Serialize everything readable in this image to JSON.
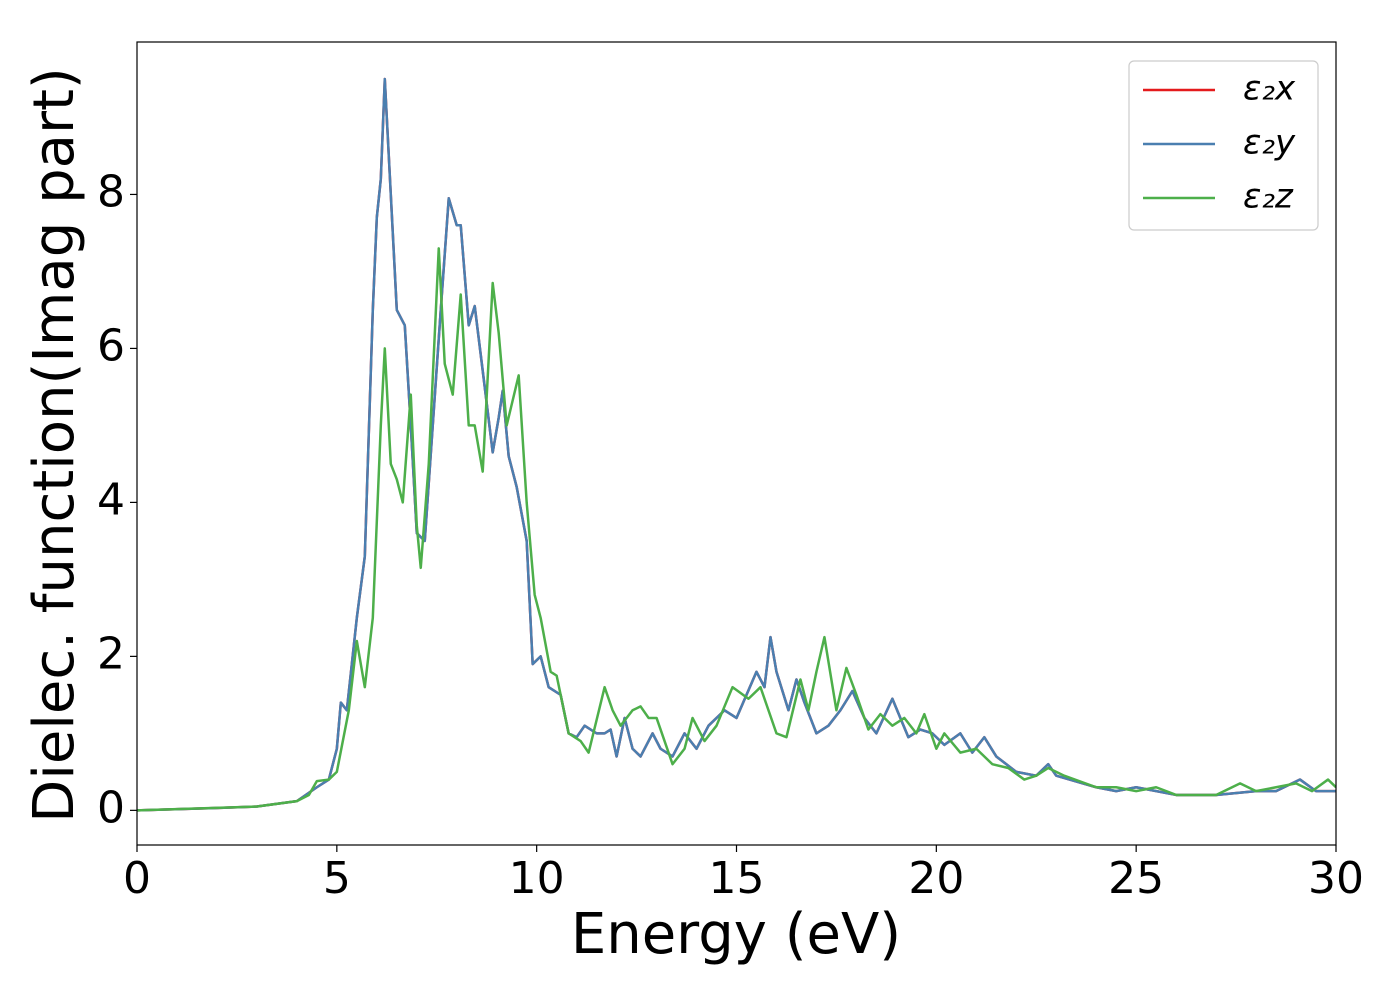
{
  "chart_data": {
    "type": "line",
    "xlabel": "Energy (eV)",
    "ylabel": "Dielec. function(Imag part)",
    "xlim": [
      0,
      30
    ],
    "ylim": [
      -0.45,
      9.98
    ],
    "xticks": [
      0,
      5,
      10,
      15,
      20,
      25,
      30
    ],
    "yticks": [
      0,
      2,
      4,
      6,
      8
    ],
    "legend": "upper right",
    "grid": false,
    "series": [
      {
        "name": "ε₂x",
        "color": "#e41a1c",
        "x": [
          0,
          2,
          3,
          4,
          4.5,
          4.8,
          5.0,
          5.1,
          5.25,
          5.5,
          5.7,
          5.9,
          6.0,
          6.1,
          6.2,
          6.3,
          6.5,
          6.7,
          6.85,
          7.0,
          7.2,
          7.4,
          7.6,
          7.8,
          8.0,
          8.1,
          8.3,
          8.45,
          8.7,
          8.9,
          9.05,
          9.15,
          9.3,
          9.5,
          9.75,
          9.9,
          10.1,
          10.3,
          10.6,
          10.8,
          11.0,
          11.2,
          11.5,
          11.7,
          11.85,
          12.0,
          12.2,
          12.4,
          12.6,
          12.9,
          13.1,
          13.4,
          13.7,
          14.0,
          14.3,
          14.7,
          15.0,
          15.5,
          15.7,
          15.85,
          16.0,
          16.3,
          16.5,
          16.7,
          17.0,
          17.3,
          17.6,
          17.9,
          18.2,
          18.5,
          18.9,
          19.1,
          19.3,
          19.6,
          19.9,
          20.2,
          20.6,
          20.9,
          21.2,
          21.5,
          22.0,
          22.5,
          22.8,
          23.0,
          24.0,
          24.5,
          25.0,
          26,
          27,
          28,
          28.5,
          29.1,
          29.5,
          30
        ],
        "values": [
          0,
          0.03,
          0.05,
          0.12,
          0.3,
          0.4,
          0.8,
          1.4,
          1.3,
          2.5,
          3.3,
          6.5,
          7.7,
          8.2,
          9.5,
          8.5,
          6.5,
          6.3,
          5.0,
          3.6,
          3.5,
          5.0,
          6.5,
          7.95,
          7.6,
          7.6,
          6.3,
          6.55,
          5.5,
          4.65,
          5.1,
          5.45,
          4.6,
          4.2,
          3.5,
          1.9,
          2.0,
          1.6,
          1.5,
          1.0,
          0.95,
          1.1,
          1.0,
          1.0,
          1.05,
          0.7,
          1.2,
          0.8,
          0.7,
          1.0,
          0.8,
          0.7,
          1.0,
          0.8,
          1.1,
          1.3,
          1.2,
          1.8,
          1.6,
          2.25,
          1.8,
          1.3,
          1.7,
          1.4,
          1.0,
          1.1,
          1.3,
          1.55,
          1.2,
          1.0,
          1.45,
          1.2,
          0.95,
          1.05,
          1.0,
          0.85,
          1.0,
          0.75,
          0.95,
          0.7,
          0.5,
          0.45,
          0.6,
          0.45,
          0.3,
          0.25,
          0.3,
          0.2,
          0.2,
          0.25,
          0.25,
          0.4,
          0.25,
          0.25
        ]
      },
      {
        "name": "ε₂y",
        "color": "#4a7fb0",
        "x": [
          0,
          2,
          3,
          4,
          4.5,
          4.8,
          5.0,
          5.1,
          5.25,
          5.5,
          5.7,
          5.9,
          6.0,
          6.1,
          6.2,
          6.3,
          6.5,
          6.7,
          6.85,
          7.0,
          7.2,
          7.4,
          7.6,
          7.8,
          8.0,
          8.1,
          8.3,
          8.45,
          8.7,
          8.9,
          9.05,
          9.15,
          9.3,
          9.5,
          9.75,
          9.9,
          10.1,
          10.3,
          10.6,
          10.8,
          11.0,
          11.2,
          11.5,
          11.7,
          11.85,
          12.0,
          12.2,
          12.4,
          12.6,
          12.9,
          13.1,
          13.4,
          13.7,
          14.0,
          14.3,
          14.7,
          15.0,
          15.5,
          15.7,
          15.85,
          16.0,
          16.3,
          16.5,
          16.7,
          17.0,
          17.3,
          17.6,
          17.9,
          18.2,
          18.5,
          18.9,
          19.1,
          19.3,
          19.6,
          19.9,
          20.2,
          20.6,
          20.9,
          21.2,
          21.5,
          22.0,
          22.5,
          22.8,
          23.0,
          24.0,
          24.5,
          25.0,
          26,
          27,
          28,
          28.5,
          29.1,
          29.5,
          30
        ],
        "values": [
          0,
          0.03,
          0.05,
          0.12,
          0.3,
          0.4,
          0.8,
          1.4,
          1.3,
          2.5,
          3.3,
          6.5,
          7.7,
          8.2,
          9.5,
          8.5,
          6.5,
          6.3,
          5.0,
          3.6,
          3.5,
          5.0,
          6.5,
          7.95,
          7.6,
          7.6,
          6.3,
          6.55,
          5.5,
          4.65,
          5.1,
          5.45,
          4.6,
          4.2,
          3.5,
          1.9,
          2.0,
          1.6,
          1.5,
          1.0,
          0.95,
          1.1,
          1.0,
          1.0,
          1.05,
          0.7,
          1.2,
          0.8,
          0.7,
          1.0,
          0.8,
          0.7,
          1.0,
          0.8,
          1.1,
          1.3,
          1.2,
          1.8,
          1.6,
          2.25,
          1.8,
          1.3,
          1.7,
          1.4,
          1.0,
          1.1,
          1.3,
          1.55,
          1.2,
          1.0,
          1.45,
          1.2,
          0.95,
          1.05,
          1.0,
          0.85,
          1.0,
          0.75,
          0.95,
          0.7,
          0.5,
          0.45,
          0.6,
          0.45,
          0.3,
          0.25,
          0.3,
          0.2,
          0.2,
          0.25,
          0.25,
          0.4,
          0.25,
          0.25
        ]
      },
      {
        "name": "ε₂z",
        "color": "#4daf4a",
        "x": [
          0,
          3,
          4,
          4.3,
          4.5,
          4.8,
          5.0,
          5.3,
          5.5,
          5.7,
          5.9,
          6.1,
          6.2,
          6.35,
          6.5,
          6.65,
          6.85,
          7.0,
          7.1,
          7.3,
          7.55,
          7.7,
          7.9,
          8.1,
          8.3,
          8.45,
          8.65,
          8.9,
          9.05,
          9.25,
          9.55,
          9.75,
          9.95,
          10.1,
          10.35,
          10.5,
          10.8,
          11.1,
          11.3,
          11.7,
          11.9,
          12.1,
          12.4,
          12.6,
          12.8,
          13.0,
          13.4,
          13.7,
          13.9,
          14.2,
          14.5,
          14.9,
          15.3,
          15.6,
          16.0,
          16.25,
          16.6,
          16.8,
          17.0,
          17.2,
          17.5,
          17.75,
          18.0,
          18.3,
          18.6,
          18.9,
          19.2,
          19.5,
          19.7,
          20.0,
          20.2,
          20.6,
          21.0,
          21.4,
          21.8,
          22.2,
          22.5,
          22.8,
          23.2,
          24.0,
          24.5,
          25.0,
          25.5,
          26.0,
          27.0,
          27.6,
          28.0,
          28.5,
          29.0,
          29.4,
          29.8,
          30
        ],
        "values": [
          0,
          0.05,
          0.12,
          0.2,
          0.38,
          0.4,
          0.5,
          1.3,
          2.2,
          1.6,
          2.5,
          5.0,
          6.0,
          4.5,
          4.3,
          4.0,
          5.4,
          3.7,
          3.15,
          4.5,
          7.3,
          5.8,
          5.4,
          6.7,
          5.0,
          5.0,
          4.4,
          6.85,
          6.2,
          5.0,
          5.65,
          4.0,
          2.8,
          2.5,
          1.8,
          1.75,
          1.0,
          0.9,
          0.75,
          1.6,
          1.3,
          1.1,
          1.3,
          1.35,
          1.2,
          1.2,
          0.6,
          0.8,
          1.2,
          0.9,
          1.1,
          1.6,
          1.45,
          1.6,
          1.0,
          0.95,
          1.7,
          1.3,
          1.8,
          2.25,
          1.3,
          1.85,
          1.5,
          1.05,
          1.25,
          1.1,
          1.2,
          1.0,
          1.25,
          0.8,
          1.0,
          0.75,
          0.8,
          0.6,
          0.55,
          0.4,
          0.45,
          0.55,
          0.45,
          0.3,
          0.3,
          0.25,
          0.3,
          0.2,
          0.2,
          0.35,
          0.25,
          0.3,
          0.35,
          0.25,
          0.4,
          0.3
        ]
      }
    ]
  }
}
